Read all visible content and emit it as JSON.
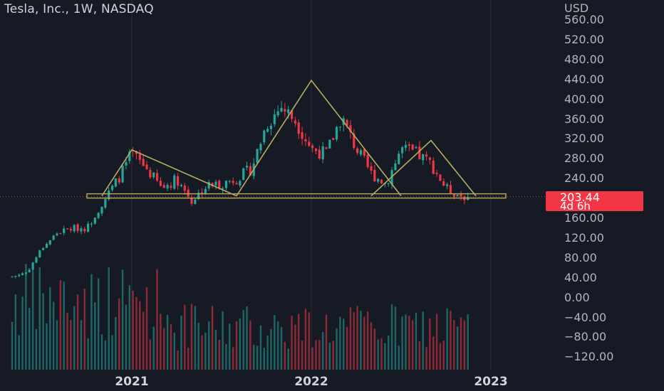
{
  "header": {
    "title": "Tesla, Inc., 1W, NASDAQ",
    "currency": "USD"
  },
  "price_badge": {
    "price": "203.44",
    "countdown": "4d 6h",
    "color": "#f23645"
  },
  "colors": {
    "background": "#161a25",
    "up": "#26a69a",
    "down": "#f23645",
    "pattern": "#b5ad5e",
    "grid": "#2a2e39"
  },
  "chart_data": {
    "type": "candlestick",
    "y_axis": {
      "ticks": [
        "560.00",
        "520.00",
        "480.00",
        "440.00",
        "400.00",
        "360.00",
        "320.00",
        "280.00",
        "240.00",
        "200.00",
        "160.00",
        "120.00",
        "80.00",
        "40.00",
        "0.00",
        "−40.00",
        "−80.00",
        "−120.00"
      ],
      "hidden_tick_value": 200,
      "range": [
        -135,
        575
      ]
    },
    "x_axis": {
      "ticks": [
        {
          "label": "2021",
          "pos": "2021-01"
        },
        {
          "label": "2022",
          "pos": "2022-01"
        },
        {
          "label": "2023",
          "pos": "2023-01"
        }
      ],
      "range": [
        "2020-05",
        "2023-09"
      ]
    },
    "price_path": [
      [
        "2020-05",
        42
      ],
      [
        "2020-06",
        52
      ],
      [
        "2020-07",
        100
      ],
      [
        "2020-08",
        130
      ],
      [
        "2020-09",
        140
      ],
      [
        "2020-10",
        140
      ],
      [
        "2020-11",
        190
      ],
      [
        "2020-12",
        235
      ],
      [
        "2021-01",
        290
      ],
      [
        "2021-02",
        260
      ],
      [
        "2021-03",
        220
      ],
      [
        "2021-04",
        240
      ],
      [
        "2021-05",
        195
      ],
      [
        "2021-06",
        225
      ],
      [
        "2021-07",
        230
      ],
      [
        "2021-08",
        240
      ],
      [
        "2021-09",
        260
      ],
      [
        "2021-10",
        350
      ],
      [
        "2021-11",
        385
      ],
      [
        "2021-12",
        355
      ],
      [
        "2022-01",
        300
      ],
      [
        "2022-02",
        290
      ],
      [
        "2022-03",
        365
      ],
      [
        "2022-04",
        300
      ],
      [
        "2022-05",
        250
      ],
      [
        "2022-06",
        230
      ],
      [
        "2022-07",
        300
      ],
      [
        "2022-08",
        290
      ],
      [
        "2022-09",
        270
      ],
      [
        "2022-10",
        220
      ],
      [
        "2022-11",
        205
      ],
      [
        "2022-11-20",
        203.44
      ]
    ],
    "last_price": 203.44,
    "pattern": {
      "name": "head-and-shoulders",
      "neckline": 205,
      "left_shoulder": {
        "start": "2020-11",
        "peak": "2021-01",
        "end": "2021-08",
        "peak_value": 298
      },
      "head": {
        "start": "2021-08",
        "peak": "2022-01",
        "end": "2022-07",
        "peak_value": 438
      },
      "right_shoulder": {
        "start": "2022-05",
        "peak": "2022-09",
        "end": "2022-12",
        "peak_value": 317
      }
    },
    "volume": "relative bars at bottom, colored by candle direction"
  }
}
